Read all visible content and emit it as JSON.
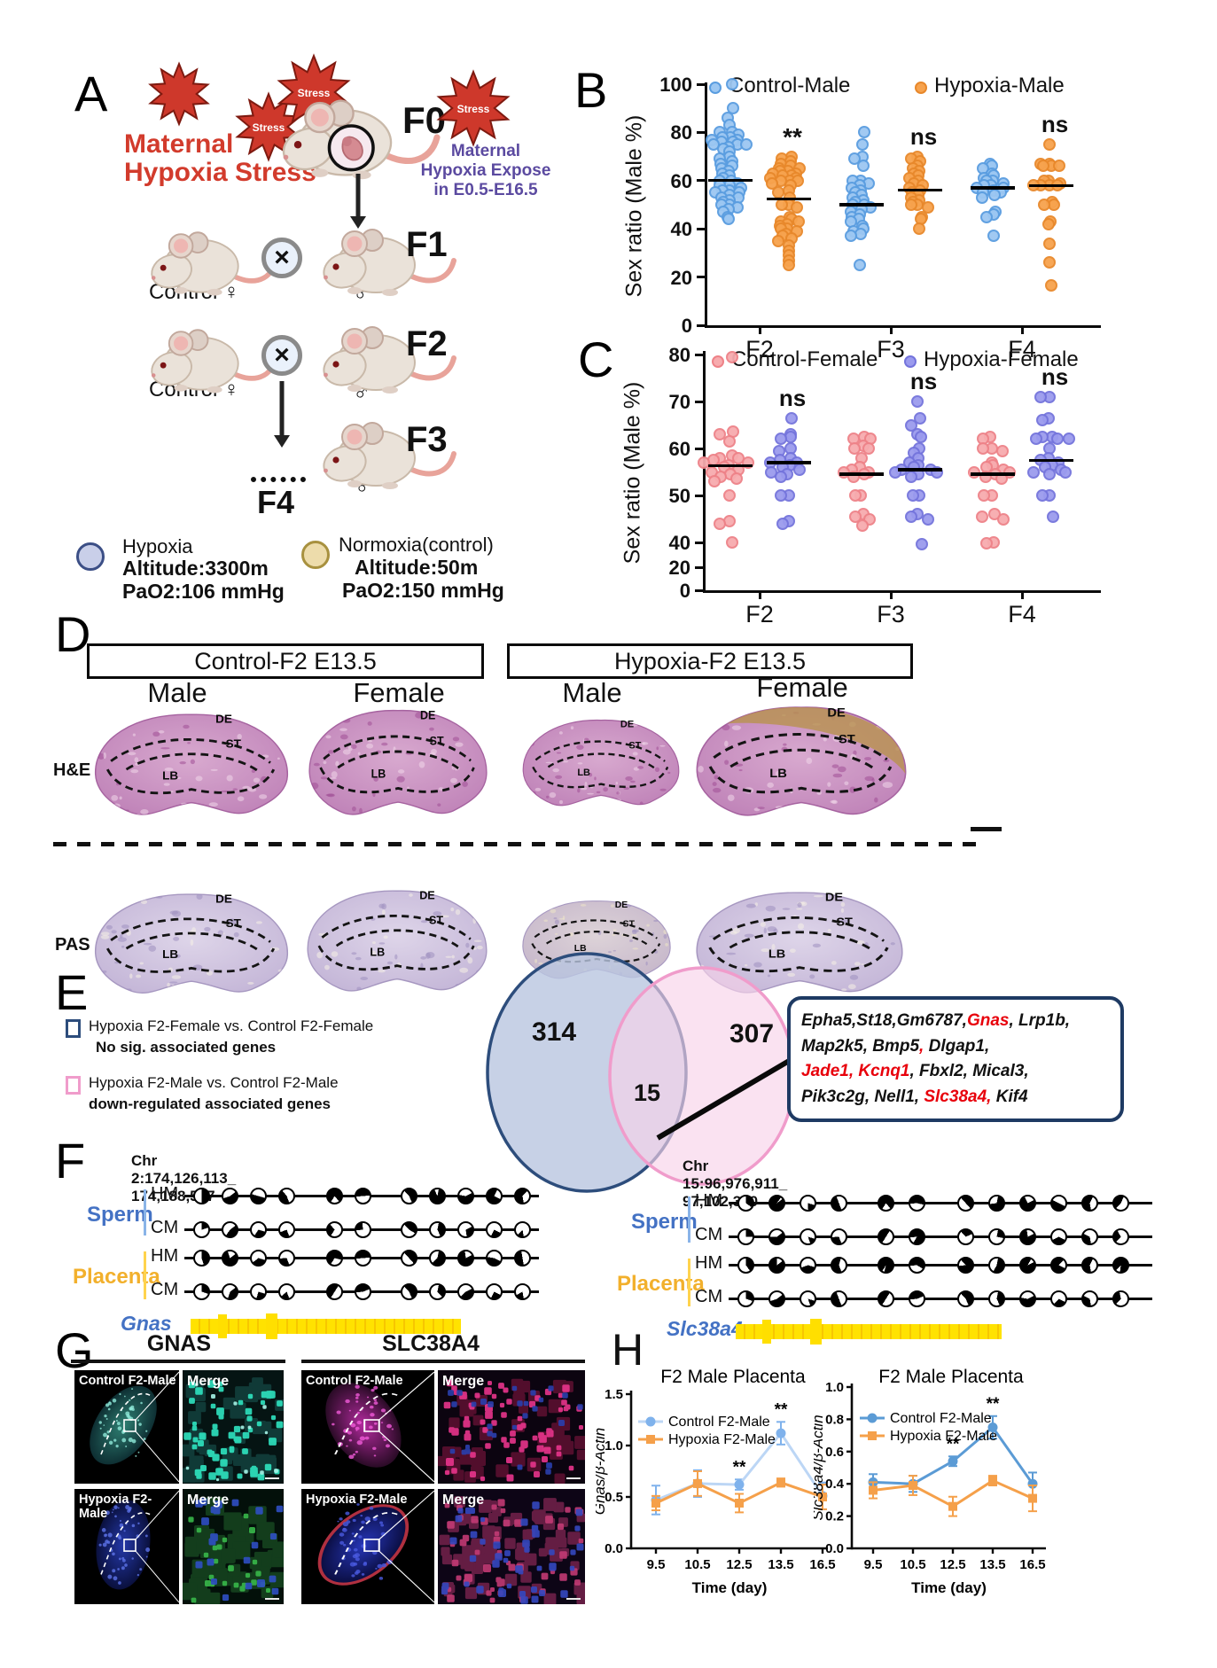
{
  "figure": {
    "panelA": {
      "label": "A",
      "stress_text": "Stress",
      "title_line1": "Maternal",
      "title_line2": "Hypoxia Stress",
      "f0": "F0",
      "note_line1": "Maternal",
      "note_line2": "Hypoxia Expose",
      "note_line3": "in E0.5-E16.5",
      "gen1": "F1",
      "gen2": "F2",
      "gen3": "F3",
      "gen4": "F4",
      "female_label": "Control ♀",
      "male_symbol": "♂",
      "legend": [
        {
          "title": "Hypoxia",
          "line1": "Altitude:3300m",
          "line2": "PaO2:106 mmHg",
          "fill": "#c9cfe9",
          "stroke": "#3c4f86"
        },
        {
          "title": "Normoxia(control)",
          "line1": "Altitude:50m",
          "line2": "PaO2:150 mmHg",
          "fill": "#eddcab",
          "stroke": "#a8913f"
        }
      ]
    },
    "panelD": {
      "label": "D",
      "header1": "Control-F2 E13.5",
      "header2": "Hypoxia-F2 E13.5",
      "col_labels": [
        "Male",
        "Female",
        "Male",
        "Female"
      ],
      "row_label1": "H&E",
      "row_label2": "PAS",
      "region_labels": [
        "DE",
        "ST",
        "LB"
      ]
    },
    "panelE": {
      "label": "E",
      "venn_left": "314",
      "venn_mid": "15",
      "venn_right": "307",
      "legend1_line1": "Hypoxia F2-Female vs. Control F2-Female",
      "legend1_line2": "No sig. associated genes",
      "legend2_line1": "Hypoxia F2-Male vs. Control F2-Male",
      "legend2_line2": "down-regulated associated genes",
      "gene_lines": [
        [
          {
            "t": "Epha5,St18,Gm6787,",
            "c": "k"
          },
          {
            "t": "Gnas",
            "c": "r"
          },
          {
            "t": ", Lrp1b,",
            "c": "k"
          }
        ],
        [
          {
            "t": "Map2k5, Bmp5",
            "c": "k"
          },
          {
            "t": ",",
            "c": "r"
          },
          {
            "t": " Dlgap1,",
            "c": "k"
          }
        ],
        [
          {
            "t": "Jade1, Kcnq1",
            "c": "r"
          },
          {
            "t": ", Fbxl2, Mical3,",
            "c": "k"
          }
        ],
        [
          {
            "t": "Pik3c2g, Nell1, ",
            "c": "k"
          },
          {
            "t": "Slc38a4,",
            "c": "r"
          },
          {
            "t": " Kif4",
            "c": "k"
          }
        ]
      ]
    },
    "panelF": {
      "label": "F",
      "sperm": "Sperm",
      "placenta": "Placenta",
      "hm": "HM",
      "cm": "CM",
      "blocks": [
        {
          "chr": "Chr 2:174,126,113_ 174,188,537",
          "gene": "Gnas",
          "sperm_hm": [
            0.5,
            0.55,
            0.5,
            0.45,
            0.8,
            0.5,
            0.55,
            0.9,
            0.6,
            0.75,
            0.65
          ],
          "sperm_cm": [
            0.2,
            0.45,
            0.3,
            0.25,
            0.3,
            0.25,
            0.45,
            0.4,
            0.3,
            0.25,
            0.15
          ],
          "placenta_hm": [
            0.45,
            0.8,
            0.35,
            0.3,
            0.7,
            0.5,
            0.5,
            0.6,
            0.8,
            0.45,
            0.5
          ],
          "placenta_cm": [
            0.3,
            0.4,
            0.25,
            0.2,
            0.5,
            0.45,
            0.55,
            0.35,
            0.45,
            0.25,
            0.2
          ]
        },
        {
          "chr": "Chr 15:96,976,911_ 97,102,320",
          "gene": "Slc38a4",
          "sperm_hm": [
            0.35,
            0.95,
            0.2,
            0.5,
            0.8,
            0.55,
            0.5,
            0.7,
            0.75,
            0.5,
            0.6,
            0.45
          ],
          "sperm_cm": [
            0.25,
            0.6,
            0.15,
            0.3,
            0.5,
            0.85,
            0.3,
            0.25,
            0.8,
            0.35,
            0.35,
            0.3
          ],
          "placenta_hm": [
            0.4,
            0.85,
            0.4,
            0.6,
            0.95,
            0.6,
            0.85,
            0.55,
            0.9,
            0.8,
            0.6,
            0.9
          ],
          "placenta_cm": [
            0.3,
            0.55,
            0.15,
            0.5,
            0.5,
            0.45,
            0.55,
            0.4,
            0.6,
            0.3,
            0.35,
            0.35
          ]
        }
      ]
    },
    "panelG": {
      "label": "G",
      "col_titles": [
        "GNAS",
        "SLC38A4"
      ],
      "tiles": [
        {
          "label": "Control F2-Male"
        },
        {
          "label": "Merge"
        },
        {
          "label": "Hypoxia F2-Male"
        },
        {
          "label": "Merge"
        },
        {
          "label": "Control F2-Male"
        },
        {
          "label": "Merge"
        },
        {
          "label": "Hypoxia F2-Male"
        },
        {
          "label": "Merge"
        }
      ]
    },
    "panelH": {
      "label": "H"
    }
  },
  "chart_data": [
    {
      "id": "B",
      "type": "scatter",
      "panel_label": "B",
      "ylabel": "Sex ratio (Male %)",
      "yticks": [
        100,
        80,
        60,
        40,
        20,
        0
      ],
      "ylim": [
        0,
        100
      ],
      "categories": [
        "F2",
        "F3",
        "F4"
      ],
      "legend": [
        {
          "label": "Control-Male",
          "series": "control"
        },
        {
          "label": "Hypoxia-Male",
          "series": "hypoxia"
        }
      ],
      "sig": [
        "**",
        "ns",
        "ns"
      ],
      "groups": [
        {
          "cat": "F2",
          "series": "control",
          "mean": 60,
          "values": [
            100,
            90,
            86,
            83,
            80,
            80,
            79,
            78,
            78,
            77,
            77,
            76,
            76,
            75,
            75,
            75,
            74,
            73,
            72,
            70,
            69,
            68,
            67,
            66,
            65,
            64,
            63,
            62,
            61,
            60,
            60,
            59,
            58,
            58,
            57,
            56,
            56,
            55,
            55,
            54,
            53,
            53,
            52,
            51,
            50,
            50,
            49,
            48,
            47,
            45,
            44
          ]
        },
        {
          "cat": "F2",
          "series": "hypoxia",
          "mean": 52.5,
          "values": [
            70,
            69,
            68,
            67,
            66,
            65,
            65,
            64,
            64,
            63,
            63,
            62,
            62,
            61,
            61,
            60,
            60,
            60,
            59,
            58,
            56,
            55,
            53,
            50,
            50,
            49,
            45,
            44,
            43,
            43,
            42,
            41,
            40,
            40,
            39,
            38,
            37,
            36,
            35,
            33,
            31,
            29,
            27,
            25
          ]
        },
        {
          "cat": "F3",
          "series": "control",
          "mean": 50,
          "values": [
            80,
            75,
            70,
            69,
            66,
            60,
            60,
            59,
            58,
            57,
            56,
            55,
            54,
            53,
            52,
            51,
            50,
            50,
            49,
            48,
            47,
            46,
            45,
            44,
            43,
            41,
            40,
            39,
            38,
            37,
            25
          ]
        },
        {
          "cat": "F3",
          "series": "hypoxia",
          "mean": 56,
          "values": [
            70,
            69,
            68,
            66,
            65,
            64,
            63,
            62,
            61,
            60,
            59,
            58,
            57,
            56,
            55,
            54,
            53,
            52,
            51,
            50,
            50,
            49,
            45,
            44,
            40
          ]
        },
        {
          "cat": "F4",
          "series": "control",
          "mean": 57,
          "values": [
            67,
            66,
            65,
            63,
            62,
            61,
            60,
            60,
            59,
            58,
            58,
            57,
            57,
            56,
            55,
            55,
            54,
            53,
            47,
            46,
            45,
            37
          ]
        },
        {
          "cat": "F4",
          "series": "hypoxia",
          "mean": 58,
          "values": [
            75,
            67,
            67,
            66,
            66,
            66,
            60,
            60,
            59,
            58,
            58,
            58,
            58,
            51,
            50,
            50,
            43,
            42,
            34,
            26,
            16.5
          ]
        }
      ]
    },
    {
      "id": "C",
      "type": "scatter",
      "panel_label": "C",
      "ylabel": "Sex ratio (Male %)",
      "yticks": [
        80,
        70,
        60,
        50,
        40,
        20,
        0
      ],
      "ylim": [
        0,
        80
      ],
      "axis_break": true,
      "categories": [
        "F2",
        "F3",
        "F4"
      ],
      "legend": [
        {
          "label": "Control-Female",
          "series": "controlF"
        },
        {
          "label": "Hypoxia-Female",
          "series": "hypoxiaF"
        }
      ],
      "sig": [
        "ns",
        "ns",
        "ns"
      ],
      "groups": [
        {
          "cat": "F2",
          "series": "controlF",
          "mean": 56.3,
          "values": [
            79.5,
            63.5,
            63,
            61.5,
            58.5,
            58,
            58,
            57.5,
            57,
            57,
            56.5,
            56,
            55.5,
            55,
            54.5,
            54,
            53.5,
            53,
            50,
            44.5,
            44,
            40
          ]
        },
        {
          "cat": "F2",
          "series": "hypoxiaF",
          "mean": 57,
          "values": [
            66.5,
            63,
            62.5,
            62,
            60,
            59.5,
            58,
            57.5,
            57,
            57,
            56.5,
            56,
            55.5,
            55,
            54.5,
            54,
            50,
            50,
            44.5,
            44
          ]
        },
        {
          "cat": "F3",
          "series": "controlF",
          "mean": 54.5,
          "values": [
            62.5,
            62,
            62,
            60.5,
            60,
            60,
            58,
            56,
            55.5,
            55,
            55,
            54.5,
            54,
            50,
            50,
            46,
            45.5,
            45,
            43.5
          ]
        },
        {
          "cat": "F3",
          "series": "hypoxiaF",
          "mean": 55.5,
          "values": [
            70,
            66.5,
            65,
            63,
            62.5,
            60,
            59,
            58,
            57,
            56.5,
            56,
            55.5,
            55.5,
            55,
            55,
            54.5,
            54,
            50,
            50,
            46,
            45.5,
            45,
            38.5
          ]
        },
        {
          "cat": "F4",
          "series": "controlF",
          "mean": 54.5,
          "values": [
            62.5,
            62,
            60,
            60,
            59.5,
            57,
            56.5,
            56,
            55.5,
            55,
            55,
            54.5,
            54,
            53.5,
            50,
            50,
            46,
            45.5,
            45,
            40,
            39.5
          ]
        },
        {
          "cat": "F4",
          "series": "hypoxiaF",
          "mean": 57.5,
          "values": [
            71,
            71,
            66.5,
            66,
            62.5,
            62.5,
            62,
            62,
            62,
            60,
            58,
            57.5,
            57,
            56.5,
            56,
            55.5,
            55,
            55,
            54.5,
            50,
            50,
            45.5
          ]
        }
      ]
    },
    {
      "id": "H1",
      "type": "line",
      "title": "F2 Male Placenta",
      "ylabel": "Gnas/β-Actin",
      "xlabel": "Time (day)",
      "x": [
        9.5,
        10.5,
        12.5,
        13.5,
        16.5
      ],
      "ylim": [
        0,
        1.5
      ],
      "yticks": [
        "0.0",
        "0.5",
        "1.0",
        "1.5"
      ],
      "series": [
        {
          "name": "Control F2-Male",
          "marker": "circle",
          "values": [
            0.47,
            0.63,
            0.62,
            1.12,
            0.51
          ],
          "err": [
            0.14,
            0.13,
            0.05,
            0.11,
            0.13
          ]
        },
        {
          "name": "Hypoxia F2-Male",
          "marker": "square",
          "values": [
            0.44,
            0.63,
            0.44,
            0.64,
            0.5
          ],
          "err": [
            0.07,
            0.12,
            0.09,
            0.04,
            0.12
          ]
        }
      ],
      "sig": [
        {
          "xi": 2,
          "text": "**"
        },
        {
          "xi": 3,
          "text": "**"
        }
      ]
    },
    {
      "id": "H2",
      "type": "line",
      "title": "F2 Male Placenta",
      "ylabel": "Slc38a4/β-Actin",
      "xlabel": "Time (day)",
      "x": [
        9.5,
        10.5,
        12.5,
        13.5,
        16.5
      ],
      "ylim": [
        0,
        1.0
      ],
      "yticks": [
        "0.0",
        "0.2",
        "0.4",
        "0.6",
        "0.8",
        "1.0"
      ],
      "series": [
        {
          "name": "Control F2-Male",
          "marker": "circle",
          "values": [
            0.41,
            0.4,
            0.54,
            0.75,
            0.4
          ],
          "err": [
            0.05,
            0.05,
            0.03,
            0.07,
            0.07
          ]
        },
        {
          "name": "Hypoxia F2-Male",
          "marker": "square",
          "values": [
            0.36,
            0.39,
            0.26,
            0.42,
            0.31
          ],
          "err": [
            0.05,
            0.06,
            0.06,
            0.03,
            0.08
          ]
        }
      ],
      "sig": [
        {
          "xi": 2,
          "text": "**"
        },
        {
          "xi": 3,
          "text": "**"
        }
      ]
    }
  ]
}
